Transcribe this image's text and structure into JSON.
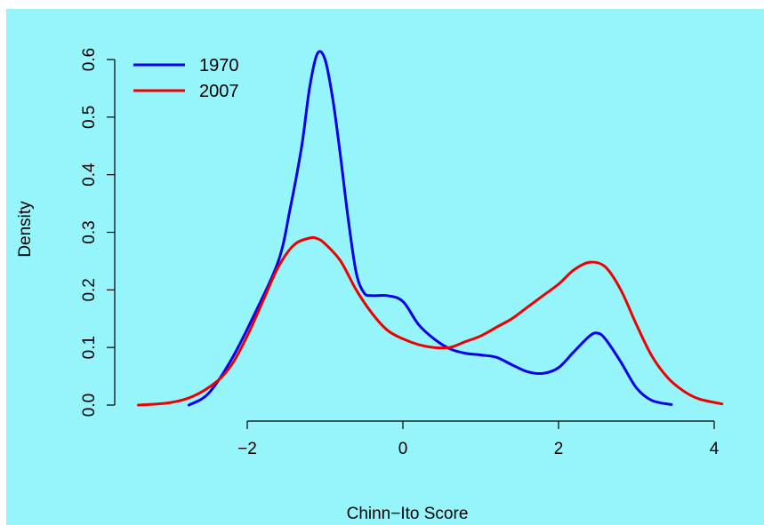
{
  "colors": {
    "background": "#96f4fb"
  },
  "chart_data": {
    "type": "line",
    "xlabel": "Chinn−Ito Score",
    "ylabel": "Density",
    "xlim": [
      -2.75,
      4.1
    ],
    "ylim": [
      0,
      0.62
    ],
    "xticks": [
      -2,
      0,
      2,
      4
    ],
    "xtick_labels": [
      "−2",
      "0",
      "2",
      "4"
    ],
    "yticks": [
      0.0,
      0.1,
      0.2,
      0.3,
      0.4,
      0.5,
      0.6
    ],
    "ytick_labels": [
      "0.0",
      "0.1",
      "0.2",
      "0.3",
      "0.4",
      "0.5",
      "0.6"
    ],
    "legend_position": "top-left",
    "grid": false,
    "series": [
      {
        "name": "1970",
        "color": "#0000ee",
        "x": [
          -2.75,
          -2.5,
          -2.2,
          -1.9,
          -1.6,
          -1.45,
          -1.3,
          -1.2,
          -1.1,
          -1.0,
          -0.9,
          -0.8,
          -0.7,
          -0.6,
          -0.5,
          -0.4,
          -0.2,
          0.0,
          0.2,
          0.4,
          0.6,
          0.8,
          1.0,
          1.2,
          1.4,
          1.6,
          1.8,
          2.0,
          2.2,
          2.4,
          2.5,
          2.6,
          2.8,
          3.0,
          3.2,
          3.45
        ],
        "y": [
          0.0,
          0.02,
          0.08,
          0.16,
          0.25,
          0.34,
          0.45,
          0.55,
          0.61,
          0.6,
          0.53,
          0.43,
          0.32,
          0.23,
          0.195,
          0.19,
          0.19,
          0.18,
          0.14,
          0.115,
          0.098,
          0.09,
          0.087,
          0.083,
          0.07,
          0.058,
          0.055,
          0.065,
          0.093,
          0.12,
          0.125,
          0.115,
          0.075,
          0.03,
          0.008,
          0.001
        ]
      },
      {
        "name": "2007",
        "color": "#ee0000",
        "x": [
          -3.4,
          -3.0,
          -2.7,
          -2.4,
          -2.2,
          -2.0,
          -1.8,
          -1.6,
          -1.4,
          -1.2,
          -1.1,
          -1.0,
          -0.8,
          -0.6,
          -0.4,
          -0.2,
          0.0,
          0.2,
          0.4,
          0.6,
          0.8,
          1.0,
          1.2,
          1.4,
          1.6,
          1.8,
          2.0,
          2.2,
          2.4,
          2.6,
          2.8,
          3.0,
          3.2,
          3.4,
          3.6,
          3.8,
          4.1
        ],
        "y": [
          0.0,
          0.004,
          0.015,
          0.04,
          0.07,
          0.12,
          0.18,
          0.24,
          0.278,
          0.29,
          0.289,
          0.28,
          0.25,
          0.2,
          0.16,
          0.13,
          0.115,
          0.105,
          0.1,
          0.1,
          0.11,
          0.12,
          0.135,
          0.15,
          0.17,
          0.19,
          0.21,
          0.235,
          0.248,
          0.24,
          0.2,
          0.14,
          0.085,
          0.048,
          0.025,
          0.011,
          0.002
        ]
      }
    ]
  }
}
